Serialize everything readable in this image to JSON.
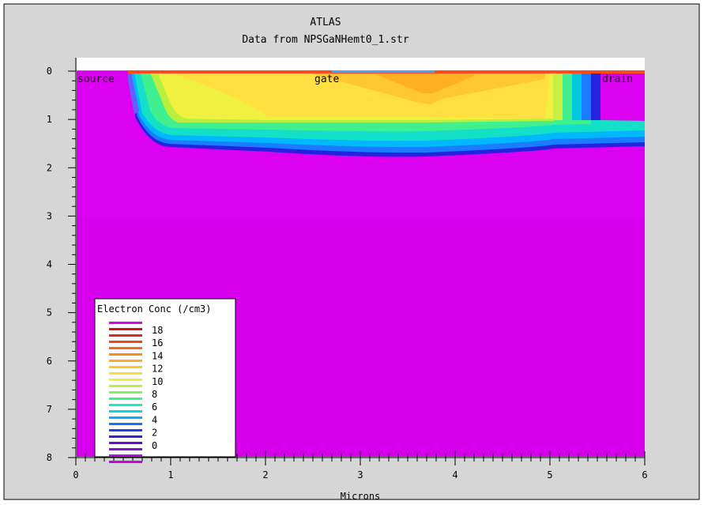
{
  "chart_data": {
    "type": "heatmap",
    "title": "ATLAS",
    "subtitle": "Data from NPSGaNHemt0_1.str",
    "xlabel": "Microns",
    "ylabel": "",
    "xlim": [
      0,
      6
    ],
    "ylim": [
      0,
      8
    ],
    "y_inverted": true,
    "x_ticks": [
      "0",
      "1",
      "2",
      "3",
      "4",
      "5",
      "6"
    ],
    "y_ticks": [
      "0",
      "1",
      "2",
      "3",
      "4",
      "5",
      "6",
      "7",
      "8"
    ],
    "annotations": [
      {
        "text": "source",
        "x": 0.0,
        "y": 0.17
      },
      {
        "text": "gate",
        "x": 2.5,
        "y": 0.17
      },
      {
        "text": "drain",
        "x": 5.55,
        "y": 0.17
      }
    ],
    "legend": {
      "title": "Electron Conc (/cm3)",
      "placement": "bottom-left",
      "levels": [
        "18",
        "16",
        "14",
        "12",
        "10",
        "8",
        "6",
        "4",
        "2",
        "0"
      ],
      "level_values": [
        18,
        16,
        14,
        12,
        10,
        8,
        6,
        4,
        2,
        0
      ]
    },
    "contours": {
      "channel_fill_value": 14.5,
      "gate_peak_value": 15.5,
      "substrate_value": 0,
      "channel_bottom_y": [
        {
          "x": 0.55,
          "y": 0.0
        },
        {
          "x": 0.62,
          "y": 1.0
        },
        {
          "x": 0.78,
          "y": 1.5
        },
        {
          "x": 1.0,
          "y": 1.55
        },
        {
          "x": 2.0,
          "y": 1.65
        },
        {
          "x": 3.0,
          "y": 1.72
        },
        {
          "x": 4.0,
          "y": 1.72
        },
        {
          "x": 5.0,
          "y": 1.55
        },
        {
          "x": 6.0,
          "y": 1.5
        }
      ],
      "upper_lip_y": 1.0,
      "drain_inner_x": 5.05
    },
    "colors": {
      "background": "#ffffff",
      "surface_band": "#ff4a1a",
      "gate_metal": "#3fa7ff",
      "substrate": "#dc00f0",
      "frame_bg": "#d6d6d6"
    }
  }
}
